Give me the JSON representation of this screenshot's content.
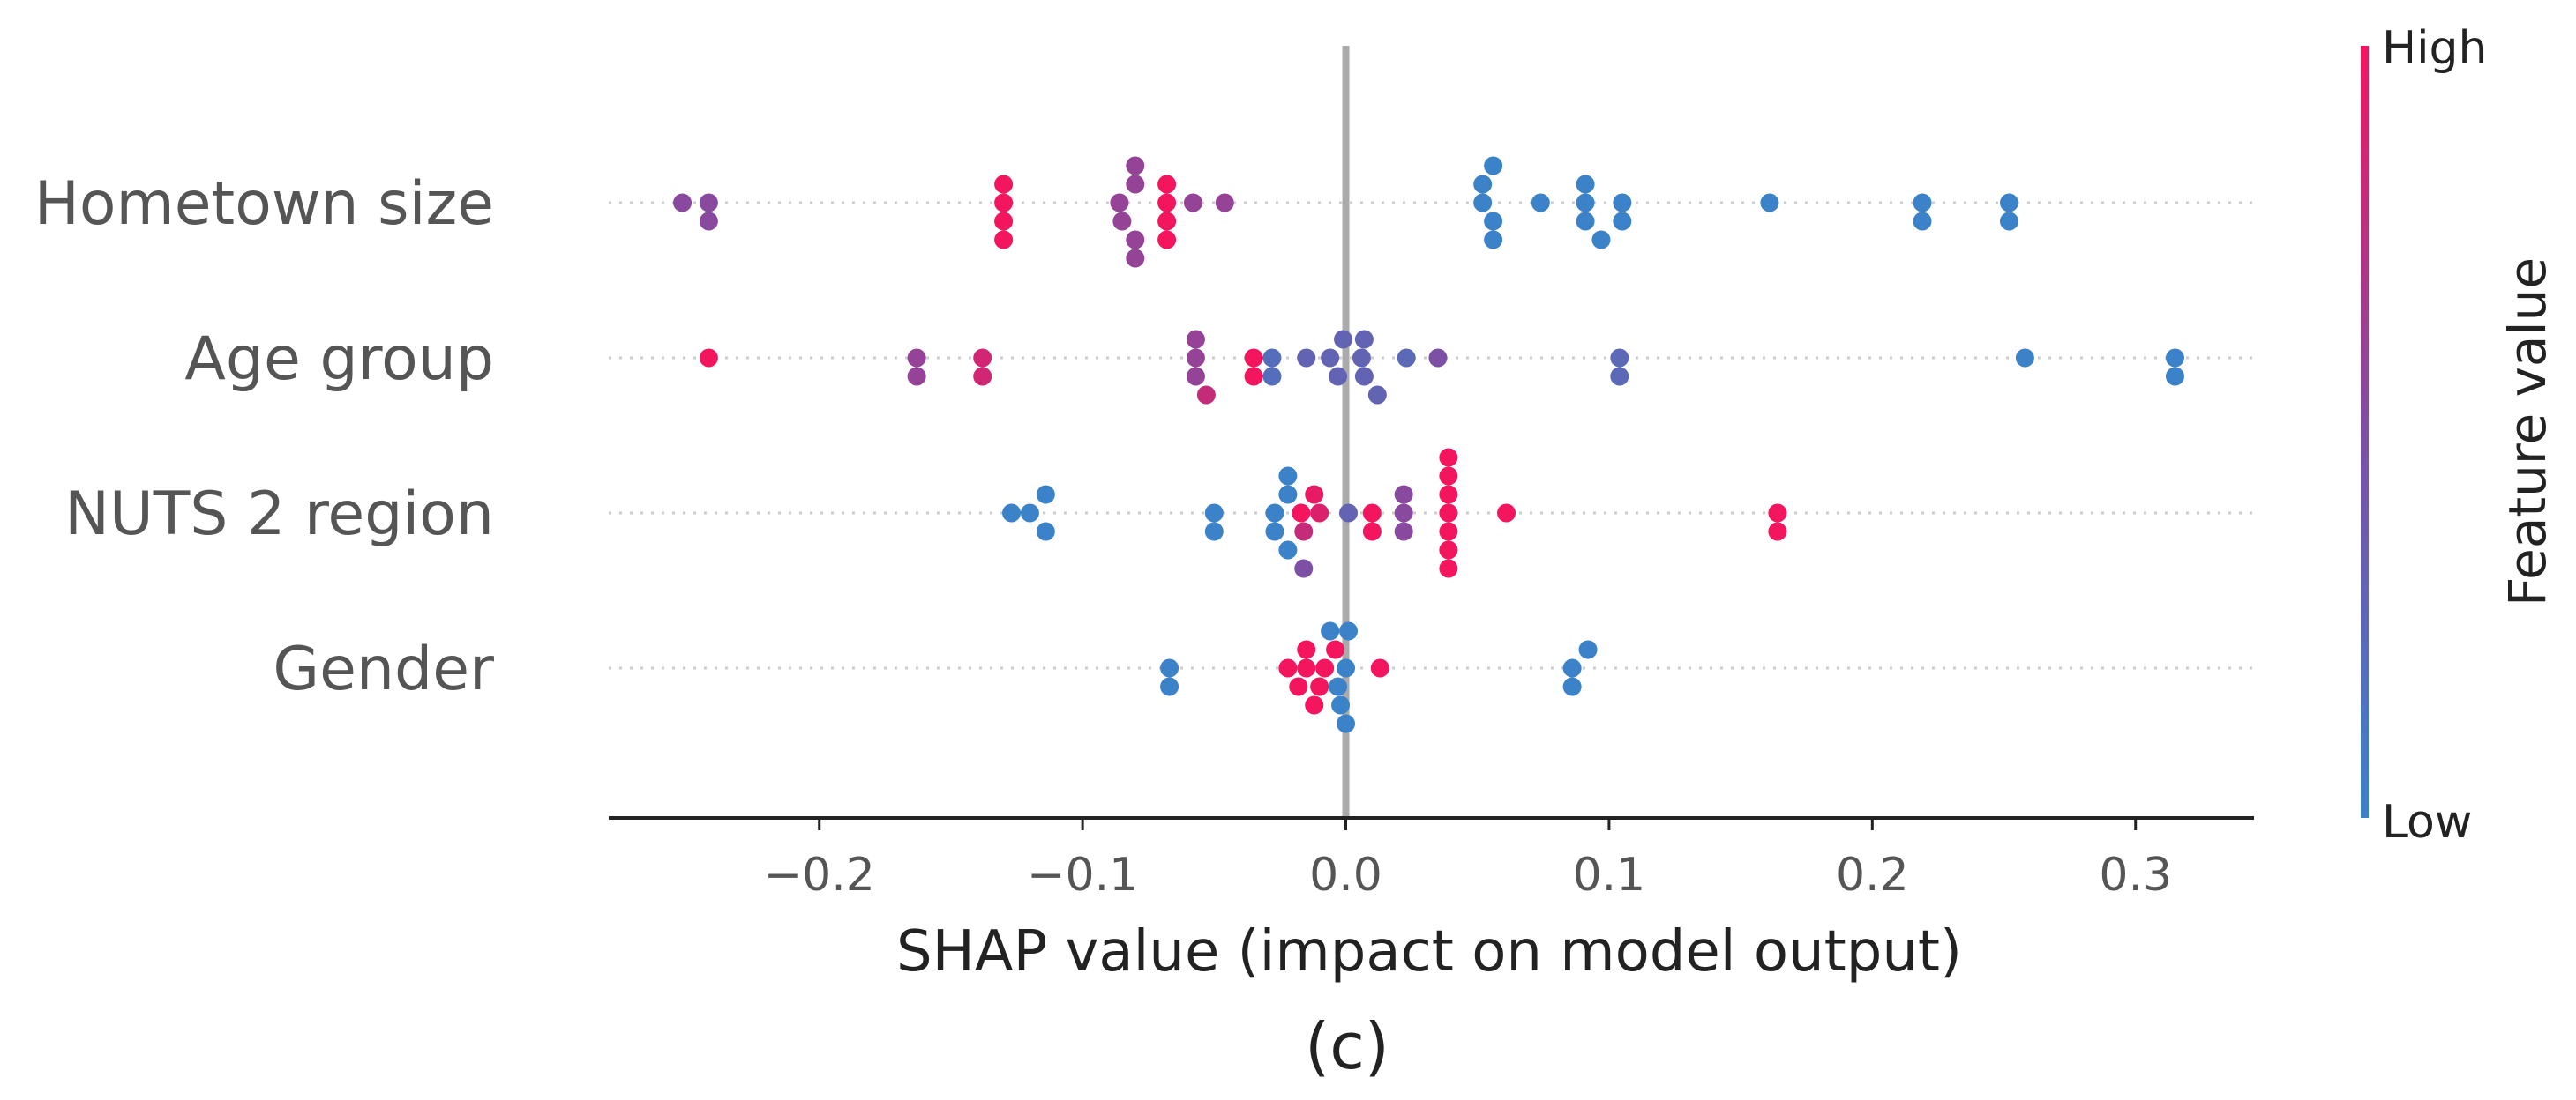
{
  "chart_data": {
    "type": "scatter",
    "subtype": "shap-beeswarm",
    "xlabel": "SHAP value (impact on model output)",
    "caption": "(c)",
    "xlim": [
      -0.28,
      0.345
    ],
    "xticks": [
      -0.2,
      -0.1,
      0.0,
      0.1,
      0.2,
      0.3
    ],
    "xtick_labels": [
      "−0.2",
      "−0.1",
      "0.0",
      "0.1",
      "0.2",
      "0.3"
    ],
    "zero_line": true,
    "colorbar": {
      "title": "Feature value",
      "high_label": "High",
      "low_label": "Low",
      "high_color": "#ff0d57",
      "low_color": "#1e88e5"
    },
    "features": [
      {
        "name": "Hometown size",
        "points": [
          {
            "x": -0.252,
            "v": 0.55
          },
          {
            "x": -0.242,
            "v": 0.55
          },
          {
            "x": -0.242,
            "v": 0.55
          },
          {
            "x": -0.13,
            "v": 1.0
          },
          {
            "x": -0.13,
            "v": 1.0
          },
          {
            "x": -0.13,
            "v": 1.0
          },
          {
            "x": -0.13,
            "v": 1.0
          },
          {
            "x": -0.086,
            "v": 0.6
          },
          {
            "x": -0.085,
            "v": 0.6
          },
          {
            "x": -0.08,
            "v": 0.6
          },
          {
            "x": -0.08,
            "v": 0.6
          },
          {
            "x": -0.08,
            "v": 0.6
          },
          {
            "x": -0.08,
            "v": 0.6
          },
          {
            "x": -0.068,
            "v": 1.0
          },
          {
            "x": -0.068,
            "v": 1.0
          },
          {
            "x": -0.068,
            "v": 1.0
          },
          {
            "x": -0.068,
            "v": 1.0
          },
          {
            "x": -0.058,
            "v": 0.6
          },
          {
            "x": -0.046,
            "v": 0.6
          },
          {
            "x": 0.052,
            "v": 0.0
          },
          {
            "x": 0.056,
            "v": 0.0
          },
          {
            "x": 0.052,
            "v": 0.0
          },
          {
            "x": 0.056,
            "v": 0.0
          },
          {
            "x": 0.056,
            "v": 0.0
          },
          {
            "x": 0.074,
            "v": 0.0
          },
          {
            "x": 0.091,
            "v": 0.0
          },
          {
            "x": 0.091,
            "v": 0.0
          },
          {
            "x": 0.091,
            "v": 0.0
          },
          {
            "x": 0.097,
            "v": 0.0
          },
          {
            "x": 0.105,
            "v": 0.0
          },
          {
            "x": 0.105,
            "v": 0.0
          },
          {
            "x": 0.161,
            "v": 0.0
          },
          {
            "x": 0.219,
            "v": 0.0
          },
          {
            "x": 0.219,
            "v": 0.0
          },
          {
            "x": 0.252,
            "v": 0.0
          },
          {
            "x": 0.252,
            "v": 0.0
          }
        ]
      },
      {
        "name": "Age group",
        "points": [
          {
            "x": -0.242,
            "v": 1.0
          },
          {
            "x": -0.163,
            "v": 0.6
          },
          {
            "x": -0.163,
            "v": 0.6
          },
          {
            "x": -0.138,
            "v": 0.85
          },
          {
            "x": -0.138,
            "v": 0.85
          },
          {
            "x": -0.057,
            "v": 0.6
          },
          {
            "x": -0.057,
            "v": 0.6
          },
          {
            "x": -0.057,
            "v": 0.6
          },
          {
            "x": -0.053,
            "v": 0.8
          },
          {
            "x": -0.035,
            "v": 1.0
          },
          {
            "x": -0.035,
            "v": 1.0
          },
          {
            "x": -0.028,
            "v": 0.2
          },
          {
            "x": -0.028,
            "v": 0.2
          },
          {
            "x": -0.015,
            "v": 0.3
          },
          {
            "x": -0.006,
            "v": 0.3
          },
          {
            "x": -0.003,
            "v": 0.3
          },
          {
            "x": -0.001,
            "v": 0.3
          },
          {
            "x": 0.006,
            "v": 0.3
          },
          {
            "x": 0.007,
            "v": 0.3
          },
          {
            "x": 0.007,
            "v": 0.3
          },
          {
            "x": 0.012,
            "v": 0.3
          },
          {
            "x": 0.023,
            "v": 0.25
          },
          {
            "x": 0.035,
            "v": 0.5
          },
          {
            "x": 0.104,
            "v": 0.25
          },
          {
            "x": 0.104,
            "v": 0.25
          },
          {
            "x": 0.258,
            "v": 0.0
          },
          {
            "x": 0.315,
            "v": 0.0
          },
          {
            "x": 0.315,
            "v": 0.0
          }
        ]
      },
      {
        "name": "NUTS 2 region",
        "points": [
          {
            "x": -0.127,
            "v": 0.0
          },
          {
            "x": -0.12,
            "v": 0.0
          },
          {
            "x": -0.114,
            "v": 0.0
          },
          {
            "x": -0.114,
            "v": 0.0
          },
          {
            "x": -0.05,
            "v": 0.0
          },
          {
            "x": -0.05,
            "v": 0.0
          },
          {
            "x": -0.027,
            "v": 0.0
          },
          {
            "x": -0.027,
            "v": 0.0
          },
          {
            "x": -0.022,
            "v": 0.0
          },
          {
            "x": -0.022,
            "v": 0.0
          },
          {
            "x": -0.022,
            "v": 0.0
          },
          {
            "x": -0.017,
            "v": 1.0
          },
          {
            "x": -0.016,
            "v": 0.8
          },
          {
            "x": -0.016,
            "v": 0.5
          },
          {
            "x": -0.012,
            "v": 0.95
          },
          {
            "x": -0.01,
            "v": 0.9
          },
          {
            "x": 0.001,
            "v": 0.3
          },
          {
            "x": 0.01,
            "v": 1.0
          },
          {
            "x": 0.01,
            "v": 1.0
          },
          {
            "x": 0.022,
            "v": 0.55
          },
          {
            "x": 0.022,
            "v": 0.55
          },
          {
            "x": 0.022,
            "v": 0.55
          },
          {
            "x": 0.039,
            "v": 1.0
          },
          {
            "x": 0.039,
            "v": 1.0
          },
          {
            "x": 0.039,
            "v": 1.0
          },
          {
            "x": 0.039,
            "v": 1.0
          },
          {
            "x": 0.039,
            "v": 1.0
          },
          {
            "x": 0.039,
            "v": 1.0
          },
          {
            "x": 0.039,
            "v": 1.0
          },
          {
            "x": 0.061,
            "v": 1.0
          },
          {
            "x": 0.164,
            "v": 1.0
          },
          {
            "x": 0.164,
            "v": 1.0
          }
        ]
      },
      {
        "name": "Gender",
        "points": [
          {
            "x": -0.067,
            "v": 0.0
          },
          {
            "x": -0.067,
            "v": 0.0
          },
          {
            "x": -0.022,
            "v": 1.0
          },
          {
            "x": -0.018,
            "v": 1.0
          },
          {
            "x": -0.015,
            "v": 1.0
          },
          {
            "x": -0.015,
            "v": 1.0
          },
          {
            "x": -0.012,
            "v": 1.0
          },
          {
            "x": -0.01,
            "v": 1.0
          },
          {
            "x": -0.008,
            "v": 1.0
          },
          {
            "x": -0.004,
            "v": 1.0
          },
          {
            "x": -0.006,
            "v": 0.0
          },
          {
            "x": -0.003,
            "v": 0.0
          },
          {
            "x": -0.002,
            "v": 0.0
          },
          {
            "x": 0.0,
            "v": 0.0
          },
          {
            "x": 0.001,
            "v": 0.0
          },
          {
            "x": 0.0,
            "v": 0.0
          },
          {
            "x": 0.013,
            "v": 1.0
          },
          {
            "x": 0.086,
            "v": 0.0
          },
          {
            "x": 0.086,
            "v": 0.0
          },
          {
            "x": 0.092,
            "v": 0.0
          }
        ]
      }
    ]
  }
}
